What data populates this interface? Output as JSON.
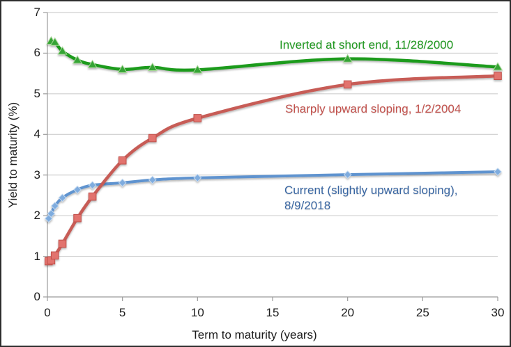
{
  "frame": {
    "background": "#ffffff",
    "border_color": "#2e2e2e"
  },
  "chart_data": {
    "type": "line",
    "title": "",
    "xlabel": "Term to maturity (years)",
    "ylabel": "Yield to maturity (%)",
    "xlim": [
      0,
      30
    ],
    "ylim": [
      0,
      7
    ],
    "xticks": [
      0,
      5,
      10,
      15,
      20,
      25,
      30
    ],
    "yticks": [
      0,
      1,
      2,
      3,
      4,
      5,
      6,
      7
    ],
    "grid": "horizontal-only",
    "legend_position": "none (direct labels on curves)",
    "line_style": "smooth",
    "series": [
      {
        "name": "11/28/2000",
        "annotation": "Inverted at short end, 11/28/2000",
        "color": "#1F9B1F",
        "marker": "triangle",
        "marker_fill": "#35A435",
        "marker_edge": "#A9D89A",
        "line_width": 4.5,
        "x": [
          0.25,
          0.5,
          1,
          2,
          3,
          5,
          7,
          10,
          20,
          30
        ],
        "y": [
          6.3,
          6.27,
          6.05,
          5.83,
          5.72,
          5.6,
          5.65,
          5.59,
          5.86,
          5.66
        ]
      },
      {
        "name": "1/2/2004",
        "annotation": "Sharply upward sloping, 1/2/2004",
        "color": "#C75B56",
        "marker": "square",
        "marker_fill": "#E2736E",
        "marker_edge": "#BF4F4A",
        "line_width": 4.5,
        "x": [
          0.083,
          0.25,
          0.5,
          1,
          2,
          3,
          5,
          7,
          10,
          20,
          30
        ],
        "y": [
          0.88,
          0.9,
          1.02,
          1.31,
          1.94,
          2.47,
          3.36,
          3.91,
          4.4,
          5.23,
          5.44
        ]
      },
      {
        "name": "8/9/2018",
        "annotation": "Current (slightly upward sloping),\n8/9/2018",
        "color": "#5E93CF",
        "marker": "diamond",
        "marker_fill": "#7FACDE",
        "marker_edge": "#C2D8F0",
        "line_width": 4,
        "x": [
          0.083,
          0.25,
          0.5,
          1,
          2,
          3,
          5,
          7,
          10,
          20,
          30
        ],
        "y": [
          1.93,
          2.05,
          2.24,
          2.44,
          2.64,
          2.75,
          2.81,
          2.88,
          2.93,
          3.01,
          3.08
        ]
      }
    ],
    "annotations": [
      {
        "id": "green",
        "text": "Inverted at short end, 11/28/2000",
        "color": "#219A21"
      },
      {
        "id": "red",
        "text": "Sharply upward sloping, 1/2/2004",
        "color": "#C3524D"
      },
      {
        "id": "blue",
        "text": "Current (slightly upward sloping),\n8/9/2018",
        "color": "#3A67A3"
      }
    ],
    "style_colors": {
      "gridline": "#c6c6c6",
      "axis": "#9b9b9b",
      "tick_text": "#1c1c1c"
    }
  }
}
